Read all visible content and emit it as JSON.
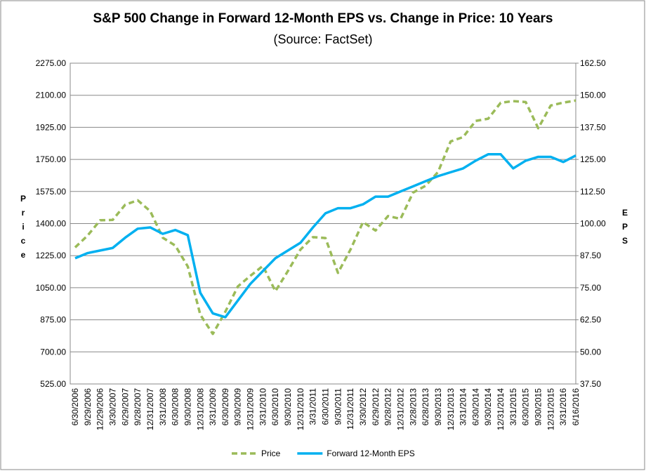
{
  "chart_data": {
    "type": "line",
    "title": "S&P 500 Change in Forward 12-Month EPS vs. Change in Price: 10 Years",
    "subtitle": "(Source: FactSet)",
    "ylabel": "Price",
    "y2label": "EPS",
    "categories": [
      "6/30/2006",
      "9/29/2006",
      "12/29/2006",
      "3/30/2007",
      "6/29/2007",
      "9/28/2007",
      "12/31/2007",
      "3/31/2008",
      "6/30/2008",
      "9/30/2008",
      "12/31/2008",
      "3/31/2009",
      "6/30/2009",
      "9/30/2009",
      "12/31/2009",
      "3/31/2010",
      "6/30/2010",
      "9/30/2010",
      "12/31/2010",
      "3/31/2011",
      "6/30/2011",
      "9/30/2011",
      "12/31/2011",
      "3/30/2012",
      "6/29/2012",
      "9/28/2012",
      "12/31/2012",
      "3/28/2013",
      "6/28/2013",
      "9/30/2013",
      "12/31/2013",
      "3/31/2014",
      "6/30/2014",
      "9/30/2014",
      "12/31/2014",
      "3/31/2015",
      "6/30/2015",
      "9/30/2015",
      "12/31/2015",
      "3/31/2016",
      "6/16/2016"
    ],
    "series": [
      {
        "name": "Price",
        "color": "#9bbb59",
        "dashed": true,
        "axis": "y",
        "values": [
          1270,
          1335,
          1418,
          1420,
          1503,
          1527,
          1468,
          1323,
          1280,
          1166,
          903,
          798,
          919,
          1057,
          1115,
          1169,
          1031,
          1141,
          1258,
          1326,
          1321,
          1131,
          1258,
          1408,
          1362,
          1441,
          1426,
          1569,
          1606,
          1682,
          1848,
          1872,
          1960,
          1972,
          2059,
          2068,
          2063,
          1920,
          2044,
          2060,
          2071
        ]
      },
      {
        "name": "Forward 12-Month EPS",
        "color": "#00b0f0",
        "dashed": false,
        "axis": "y2",
        "values": [
          86.5,
          88.5,
          89.5,
          90.5,
          94.5,
          98,
          98.5,
          96,
          97.5,
          95.5,
          73,
          65,
          63.5,
          70,
          76.5,
          81.5,
          86.5,
          89.5,
          92.5,
          98.5,
          104,
          106,
          106,
          107.5,
          110.5,
          110.5,
          112.5,
          114.5,
          116.5,
          118.5,
          120,
          121.5,
          124.5,
          127,
          127,
          121.5,
          124.5,
          126,
          126,
          124,
          126.5
        ]
      }
    ],
    "ylim": [
      525,
      2275
    ],
    "yticks": [
      {
        "value": 525,
        "label": "525.00"
      },
      {
        "value": 700,
        "label": "700.00"
      },
      {
        "value": 875,
        "label": "875.00"
      },
      {
        "value": 1050,
        "label": "1050.00"
      },
      {
        "value": 1225,
        "label": "1225.00"
      },
      {
        "value": 1400,
        "label": "1400.00"
      },
      {
        "value": 1575,
        "label": "1575.00"
      },
      {
        "value": 1750,
        "label": "1750.00"
      },
      {
        "value": 1925,
        "label": "1925.00"
      },
      {
        "value": 2100,
        "label": "2100.00"
      },
      {
        "value": 2275,
        "label": "2275.00"
      }
    ],
    "y2lim": [
      37.5,
      162.5
    ],
    "y2ticks": [
      {
        "value": 37.5,
        "label": "37.50"
      },
      {
        "value": 50,
        "label": "50.00"
      },
      {
        "value": 62.5,
        "label": "62.50"
      },
      {
        "value": 75,
        "label": "75.00"
      },
      {
        "value": 87.5,
        "label": "87.50"
      },
      {
        "value": 100,
        "label": "100.00"
      },
      {
        "value": 112.5,
        "label": "112.50"
      },
      {
        "value": 125,
        "label": "125.00"
      },
      {
        "value": 137.5,
        "label": "137.50"
      },
      {
        "value": 150,
        "label": "150.00"
      },
      {
        "value": 162.5,
        "label": "162.50"
      }
    ],
    "grid": true,
    "legend": "bottom"
  }
}
